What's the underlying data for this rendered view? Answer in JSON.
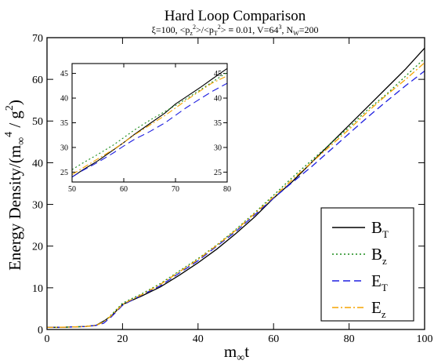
{
  "chart_data": {
    "type": "line",
    "title": "Hard Loop Comparison",
    "subtitle": {
      "xi": "ξ=100, ",
      "pz_open": "<p",
      "pz_sub": "z",
      "pz_sup": "2",
      "pz_close": ">/<p",
      "pt_sub": "T",
      "pt_sup": "2",
      "pt_close": "> ≡ 0.01, V=64",
      "v_sup": "3",
      "nw": ", N",
      "nw_sub": "W",
      "nw_val": "=200"
    },
    "xlabel": {
      "m": "m",
      "sub": "∞",
      "t": "t"
    },
    "ylabel": {
      "lead": "Energy Density/(m",
      "sub": "∞",
      "sup4": "4",
      "mid": " / g",
      "sup2": "2",
      "close": ")"
    },
    "xlim": [
      0,
      100
    ],
    "ylim": [
      0,
      70
    ],
    "xticks": [
      "0",
      "20",
      "40",
      "60",
      "80",
      "100"
    ],
    "yticks": [
      "0",
      "10",
      "20",
      "30",
      "40",
      "50",
      "60",
      "70"
    ],
    "legend_position": "bottom-right",
    "grid": false,
    "series": [
      {
        "key": "BT",
        "base": "B",
        "sub": "T",
        "color": "#000000",
        "dash": "",
        "points": [
          [
            0,
            0.5
          ],
          [
            5,
            0.55
          ],
          [
            10,
            0.7
          ],
          [
            13,
            1.0
          ],
          [
            15,
            2.0
          ],
          [
            17,
            3.2
          ],
          [
            20,
            6.0
          ],
          [
            22,
            6.8
          ],
          [
            25,
            8.0
          ],
          [
            30,
            10.2
          ],
          [
            35,
            13.0
          ],
          [
            40,
            16.0
          ],
          [
            45,
            19.3
          ],
          [
            50,
            23.0
          ],
          [
            55,
            27.0
          ],
          [
            60,
            31.5
          ],
          [
            65,
            35.5
          ],
          [
            70,
            40.0
          ],
          [
            75,
            44.5
          ],
          [
            80,
            49.0
          ],
          [
            85,
            53.5
          ],
          [
            90,
            58.0
          ],
          [
            95,
            62.5
          ],
          [
            100,
            67.5
          ]
        ]
      },
      {
        "key": "Bz",
        "base": "B",
        "sub": "z",
        "color": "#1a8c1a",
        "dash": "2,3",
        "points": [
          [
            0,
            0.5
          ],
          [
            5,
            0.55
          ],
          [
            10,
            0.7
          ],
          [
            13,
            1.0
          ],
          [
            15,
            1.8
          ],
          [
            17,
            3.5
          ],
          [
            20,
            6.3
          ],
          [
            22,
            7.2
          ],
          [
            25,
            8.5
          ],
          [
            30,
            11.0
          ],
          [
            35,
            14.0
          ],
          [
            40,
            17.0
          ],
          [
            45,
            20.3
          ],
          [
            50,
            24.0
          ],
          [
            55,
            28.0
          ],
          [
            60,
            32.2
          ],
          [
            65,
            36.5
          ],
          [
            70,
            40.5
          ],
          [
            75,
            44.5
          ],
          [
            80,
            48.5
          ],
          [
            85,
            52.8
          ],
          [
            90,
            56.5
          ],
          [
            95,
            60.8
          ],
          [
            100,
            65.0
          ]
        ]
      },
      {
        "key": "ET",
        "base": "E",
        "sub": "T",
        "color": "#1f1fe0",
        "dash": "9,5",
        "points": [
          [
            0,
            0.5
          ],
          [
            5,
            0.55
          ],
          [
            10,
            0.7
          ],
          [
            13,
            1.0
          ],
          [
            15,
            1.5
          ],
          [
            17,
            3.0
          ],
          [
            20,
            5.8
          ],
          [
            22,
            6.8
          ],
          [
            25,
            8.2
          ],
          [
            30,
            10.5
          ],
          [
            35,
            13.5
          ],
          [
            40,
            16.5
          ],
          [
            45,
            20.0
          ],
          [
            50,
            23.5
          ],
          [
            55,
            27.5
          ],
          [
            60,
            31.5
          ],
          [
            65,
            35.3
          ],
          [
            70,
            39.0
          ],
          [
            75,
            43.0
          ],
          [
            80,
            47.0
          ],
          [
            85,
            51.0
          ],
          [
            90,
            54.8
          ],
          [
            95,
            58.5
          ],
          [
            100,
            62.0
          ]
        ]
      },
      {
        "key": "Ez",
        "base": "E",
        "sub": "z",
        "color": "#f5a300",
        "dash": "8,3,2,3",
        "points": [
          [
            0,
            0.5
          ],
          [
            5,
            0.55
          ],
          [
            10,
            0.7
          ],
          [
            13,
            1.0
          ],
          [
            15,
            1.8
          ],
          [
            17,
            3.3
          ],
          [
            20,
            6.0
          ],
          [
            22,
            7.0
          ],
          [
            25,
            8.3
          ],
          [
            30,
            10.8
          ],
          [
            35,
            13.8
          ],
          [
            40,
            16.8
          ],
          [
            45,
            20.2
          ],
          [
            50,
            23.8
          ],
          [
            55,
            27.8
          ],
          [
            60,
            31.8
          ],
          [
            65,
            36.0
          ],
          [
            70,
            40.0
          ],
          [
            75,
            44.0
          ],
          [
            80,
            48.0
          ],
          [
            85,
            52.3
          ],
          [
            90,
            56.3
          ],
          [
            95,
            60.0
          ],
          [
            100,
            64.0
          ]
        ]
      }
    ],
    "inset": {
      "xlim": [
        50,
        80
      ],
      "ylim": [
        23,
        47
      ],
      "xticks": [
        "50",
        "60",
        "70",
        "80"
      ],
      "yticks": [
        "25",
        "30",
        "35",
        "40",
        "45"
      ],
      "series": [
        {
          "key": "BT",
          "points": [
            [
              50,
              24.0
            ],
            [
              52,
              25.4
            ],
            [
              55,
              27.3
            ],
            [
              58,
              29.5
            ],
            [
              60,
              31.0
            ],
            [
              62,
              32.6
            ],
            [
              65,
              34.8
            ],
            [
              68,
              37.0
            ],
            [
              70,
              38.8
            ],
            [
              72,
              40.2
            ],
            [
              75,
              42.3
            ],
            [
              77,
              43.8
            ],
            [
              80,
              46.0
            ]
          ]
        },
        {
          "key": "Bz",
          "points": [
            [
              50,
              25.5
            ],
            [
              52,
              26.8
            ],
            [
              55,
              28.6
            ],
            [
              58,
              30.5
            ],
            [
              60,
              32.0
            ],
            [
              62,
              33.5
            ],
            [
              65,
              35.5
            ],
            [
              68,
              37.3
            ],
            [
              70,
              38.5
            ],
            [
              72,
              39.8
            ],
            [
              75,
              41.8
            ],
            [
              77,
              43.2
            ],
            [
              80,
              45.2
            ]
          ]
        },
        {
          "key": "ET",
          "points": [
            [
              50,
              24.0
            ],
            [
              52,
              25.3
            ],
            [
              55,
              27.0
            ],
            [
              58,
              28.9
            ],
            [
              60,
              30.3
            ],
            [
              62,
              31.6
            ],
            [
              65,
              33.2
            ],
            [
              68,
              35.0
            ],
            [
              70,
              36.5
            ],
            [
              72,
              38.0
            ],
            [
              75,
              40.0
            ],
            [
              77,
              41.3
            ],
            [
              80,
              43.0
            ]
          ]
        },
        {
          "key": "Ez",
          "points": [
            [
              50,
              24.5
            ],
            [
              52,
              25.8
            ],
            [
              55,
              27.7
            ],
            [
              58,
              29.6
            ],
            [
              60,
              31.0
            ],
            [
              62,
              32.5
            ],
            [
              65,
              34.5
            ],
            [
              68,
              36.5
            ],
            [
              70,
              38.0
            ],
            [
              72,
              39.5
            ],
            [
              75,
              41.6
            ],
            [
              77,
              43.0
            ],
            [
              80,
              44.5
            ]
          ]
        }
      ]
    }
  }
}
